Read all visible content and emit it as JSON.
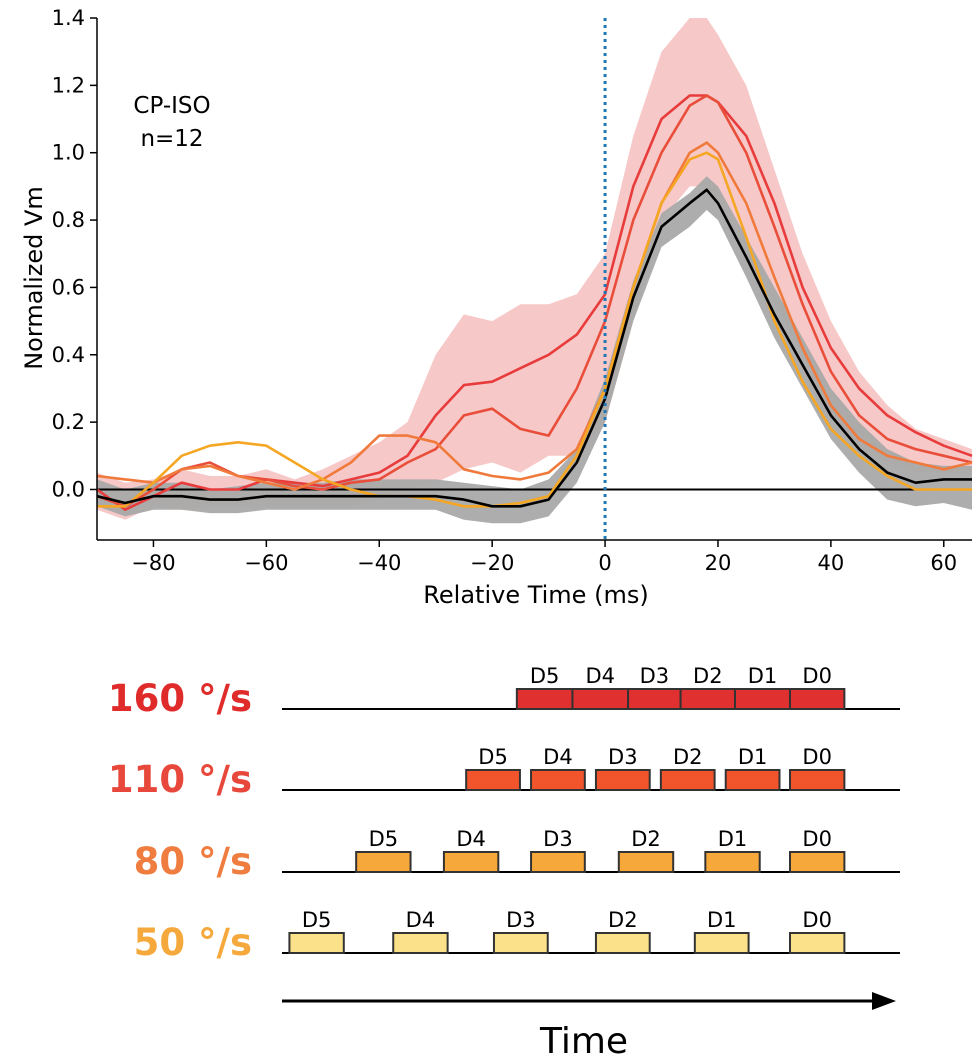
{
  "chart_data": {
    "type": "line",
    "xlabel": "Relative Time (ms)",
    "ylabel": "Normalized Vm",
    "xlim": [
      -90,
      65
    ],
    "ylim": [
      -0.15,
      1.4
    ],
    "xticks": [
      -80,
      -60,
      -40,
      -20,
      0,
      20,
      40,
      60
    ],
    "yticks": [
      0.0,
      0.2,
      0.4,
      0.6,
      0.8,
      1.0,
      1.2,
      1.4
    ],
    "xtick_labels": [
      "−80",
      "−60",
      "−40",
      "−20",
      "0",
      "20",
      "40",
      "60"
    ],
    "ytick_labels": [
      "0.0",
      "0.2",
      "0.4",
      "0.6",
      "0.8",
      "1.0",
      "1.2",
      "1.4"
    ],
    "annotation": [
      "CP-ISO",
      "n=12"
    ],
    "reference_lines": {
      "horizontal_y": 0,
      "vertical_x": 0,
      "vertical_style": "dotted",
      "vertical_color": "#1f77b4"
    },
    "bands": [
      {
        "color": "#f4b6b6",
        "x": [
          -90,
          -85,
          -80,
          -75,
          -70,
          -65,
          -60,
          -55,
          -50,
          -45,
          -40,
          -35,
          -30,
          -25,
          -20,
          -15,
          -10,
          -5,
          0,
          5,
          10,
          15,
          18,
          20,
          25,
          30,
          35,
          40,
          45,
          50,
          55,
          60,
          65
        ],
        "upper": [
          0.05,
          0.02,
          0.03,
          0.06,
          0.04,
          0.04,
          0.06,
          0.03,
          0.06,
          0.1,
          0.14,
          0.2,
          0.4,
          0.52,
          0.5,
          0.55,
          0.55,
          0.58,
          0.7,
          1.05,
          1.3,
          1.4,
          1.4,
          1.35,
          1.2,
          0.95,
          0.7,
          0.5,
          0.35,
          0.25,
          0.18,
          0.15,
          0.12
        ],
        "lower": [
          -0.06,
          -0.09,
          -0.05,
          -0.06,
          -0.05,
          -0.05,
          -0.05,
          -0.05,
          -0.05,
          -0.05,
          -0.03,
          0.0,
          0.02,
          0.06,
          0.08,
          0.05,
          0.1,
          0.1,
          0.2,
          0.5,
          0.8,
          0.9,
          0.9,
          0.85,
          0.7,
          0.55,
          0.4,
          0.22,
          0.12,
          0.08,
          0.05,
          0.05,
          0.04
        ]
      },
      {
        "color": "#a9a9a9",
        "x": [
          -90,
          -85,
          -80,
          -75,
          -70,
          -65,
          -60,
          -55,
          -50,
          -45,
          -40,
          -35,
          -30,
          -25,
          -20,
          -15,
          -10,
          -5,
          0,
          5,
          10,
          15,
          18,
          20,
          25,
          30,
          35,
          40,
          45,
          50,
          55,
          60,
          65
        ],
        "upper": [
          0.03,
          0.0,
          0.02,
          0.02,
          0.0,
          0.01,
          0.02,
          0.02,
          0.02,
          0.03,
          0.03,
          0.03,
          0.03,
          0.02,
          0.01,
          0.0,
          0.03,
          0.12,
          0.33,
          0.62,
          0.82,
          0.88,
          0.93,
          0.9,
          0.75,
          0.6,
          0.45,
          0.3,
          0.2,
          0.12,
          0.08,
          0.07,
          0.07
        ],
        "lower": [
          -0.05,
          -0.08,
          -0.06,
          -0.06,
          -0.07,
          -0.07,
          -0.06,
          -0.06,
          -0.06,
          -0.06,
          -0.06,
          -0.06,
          -0.06,
          -0.09,
          -0.1,
          -0.1,
          -0.08,
          0.02,
          0.2,
          0.5,
          0.72,
          0.78,
          0.83,
          0.8,
          0.63,
          0.45,
          0.3,
          0.15,
          0.05,
          -0.03,
          -0.05,
          -0.04,
          -0.06
        ]
      }
    ],
    "series": [
      {
        "color": "#000000",
        "x": [
          -90,
          -85,
          -80,
          -75,
          -70,
          -65,
          -60,
          -55,
          -50,
          -45,
          -40,
          -35,
          -30,
          -25,
          -20,
          -15,
          -10,
          -5,
          0,
          5,
          10,
          15,
          18,
          20,
          25,
          30,
          35,
          40,
          45,
          50,
          55,
          60,
          65
        ],
        "y": [
          -0.02,
          -0.04,
          -0.02,
          -0.02,
          -0.03,
          -0.03,
          -0.02,
          -0.02,
          -0.02,
          -0.02,
          -0.02,
          -0.02,
          -0.02,
          -0.03,
          -0.05,
          -0.05,
          -0.03,
          0.08,
          0.27,
          0.57,
          0.78,
          0.85,
          0.89,
          0.85,
          0.69,
          0.52,
          0.37,
          0.22,
          0.12,
          0.05,
          0.02,
          0.03,
          0.03
        ]
      },
      {
        "color": "#e83c3c",
        "x": [
          -90,
          -85,
          -80,
          -75,
          -70,
          -65,
          -60,
          -55,
          -50,
          -45,
          -40,
          -35,
          -30,
          -25,
          -20,
          -15,
          -10,
          -5,
          0,
          5,
          10,
          15,
          18,
          20,
          25,
          30,
          35,
          40,
          45,
          50,
          55,
          60,
          65
        ],
        "y": [
          0.0,
          -0.06,
          -0.02,
          0.02,
          0.0,
          0.0,
          0.03,
          0.02,
          0.01,
          0.03,
          0.05,
          0.1,
          0.22,
          0.31,
          0.32,
          0.36,
          0.4,
          0.46,
          0.58,
          0.9,
          1.1,
          1.17,
          1.17,
          1.15,
          1.05,
          0.85,
          0.6,
          0.42,
          0.3,
          0.22,
          0.17,
          0.13,
          0.1
        ]
      },
      {
        "color": "#e94e3a",
        "x": [
          -90,
          -85,
          -80,
          -75,
          -70,
          -65,
          -60,
          -55,
          -50,
          -45,
          -40,
          -35,
          -30,
          -25,
          -20,
          -15,
          -10,
          -5,
          0,
          5,
          10,
          15,
          18,
          20,
          25,
          30,
          35,
          40,
          45,
          50,
          55,
          60,
          65
        ],
        "y": [
          -0.02,
          -0.05,
          0.0,
          0.06,
          0.08,
          0.04,
          0.03,
          0.01,
          0.0,
          0.02,
          0.03,
          0.08,
          0.12,
          0.22,
          0.24,
          0.18,
          0.16,
          0.3,
          0.5,
          0.8,
          1.0,
          1.14,
          1.17,
          1.15,
          1.0,
          0.78,
          0.55,
          0.35,
          0.22,
          0.15,
          0.12,
          0.1,
          0.08
        ]
      },
      {
        "color": "#f07a3c",
        "x": [
          -90,
          -85,
          -80,
          -75,
          -70,
          -65,
          -60,
          -55,
          -50,
          -45,
          -40,
          -35,
          -30,
          -25,
          -20,
          -15,
          -10,
          -5,
          0,
          5,
          10,
          15,
          18,
          20,
          25,
          30,
          35,
          40,
          45,
          50,
          55,
          60,
          65
        ],
        "y": [
          0.04,
          0.03,
          0.02,
          0.06,
          0.07,
          0.04,
          0.02,
          0.0,
          0.03,
          0.08,
          0.16,
          0.16,
          0.14,
          0.06,
          0.04,
          0.03,
          0.05,
          0.12,
          0.3,
          0.6,
          0.85,
          1.0,
          1.03,
          1.0,
          0.85,
          0.63,
          0.42,
          0.25,
          0.15,
          0.1,
          0.08,
          0.06,
          0.08
        ]
      },
      {
        "color": "#f5a623",
        "x": [
          -90,
          -85,
          -80,
          -75,
          -70,
          -65,
          -60,
          -55,
          -50,
          -45,
          -40,
          -35,
          -30,
          -25,
          -20,
          -15,
          -10,
          -5,
          0,
          5,
          10,
          15,
          18,
          20,
          25,
          30,
          35,
          40,
          45,
          50,
          55,
          60,
          65
        ],
        "y": [
          -0.05,
          -0.05,
          0.02,
          0.1,
          0.13,
          0.14,
          0.13,
          0.08,
          0.03,
          0.0,
          -0.02,
          -0.02,
          -0.03,
          -0.05,
          -0.05,
          -0.04,
          -0.02,
          0.1,
          0.3,
          0.6,
          0.85,
          0.98,
          1.0,
          0.98,
          0.75,
          0.5,
          0.32,
          0.18,
          0.1,
          0.04,
          0.0,
          0.0,
          0.0
        ]
      }
    ]
  },
  "diagram": {
    "time_label": "Time",
    "rows": [
      {
        "label": "160 °/s",
        "color": "#e02b2b",
        "block_color": "#e03030",
        "blocks": [
          {
            "label": "D5",
            "start": 0.38,
            "end": 0.47
          },
          {
            "label": "D4",
            "start": 0.47,
            "end": 0.56
          },
          {
            "label": "D3",
            "start": 0.56,
            "end": 0.645
          },
          {
            "label": "D2",
            "start": 0.645,
            "end": 0.733
          },
          {
            "label": "D1",
            "start": 0.733,
            "end": 0.822
          },
          {
            "label": "D0",
            "start": 0.822,
            "end": 0.91
          }
        ]
      },
      {
        "label": "110 °/s",
        "color": "#e8483c",
        "block_color": "#f2552c",
        "blocks": [
          {
            "label": "D5",
            "start": 0.298,
            "end": 0.385
          },
          {
            "label": "D4",
            "start": 0.403,
            "end": 0.49
          },
          {
            "label": "D3",
            "start": 0.508,
            "end": 0.595
          },
          {
            "label": "D2",
            "start": 0.613,
            "end": 0.7
          },
          {
            "label": "D1",
            "start": 0.718,
            "end": 0.805
          },
          {
            "label": "D0",
            "start": 0.822,
            "end": 0.91
          }
        ]
      },
      {
        "label": "80 °/s",
        "color": "#ef7d3f",
        "block_color": "#f7a83a",
        "blocks": [
          {
            "label": "D5",
            "start": 0.12,
            "end": 0.208
          },
          {
            "label": "D4",
            "start": 0.262,
            "end": 0.35
          },
          {
            "label": "D3",
            "start": 0.403,
            "end": 0.49
          },
          {
            "label": "D2",
            "start": 0.545,
            "end": 0.633
          },
          {
            "label": "D1",
            "start": 0.685,
            "end": 0.773
          },
          {
            "label": "D0",
            "start": 0.822,
            "end": 0.91
          }
        ]
      },
      {
        "label": "50 °/s",
        "color": "#f5a93c",
        "block_color": "#fbe28a",
        "blocks": [
          {
            "label": "D5",
            "start": 0.012,
            "end": 0.1
          },
          {
            "label": "D4",
            "start": 0.18,
            "end": 0.268
          },
          {
            "label": "D3",
            "start": 0.343,
            "end": 0.43
          },
          {
            "label": "D2",
            "start": 0.508,
            "end": 0.595
          },
          {
            "label": "D1",
            "start": 0.668,
            "end": 0.755
          },
          {
            "label": "D0",
            "start": 0.822,
            "end": 0.91
          }
        ]
      }
    ]
  }
}
